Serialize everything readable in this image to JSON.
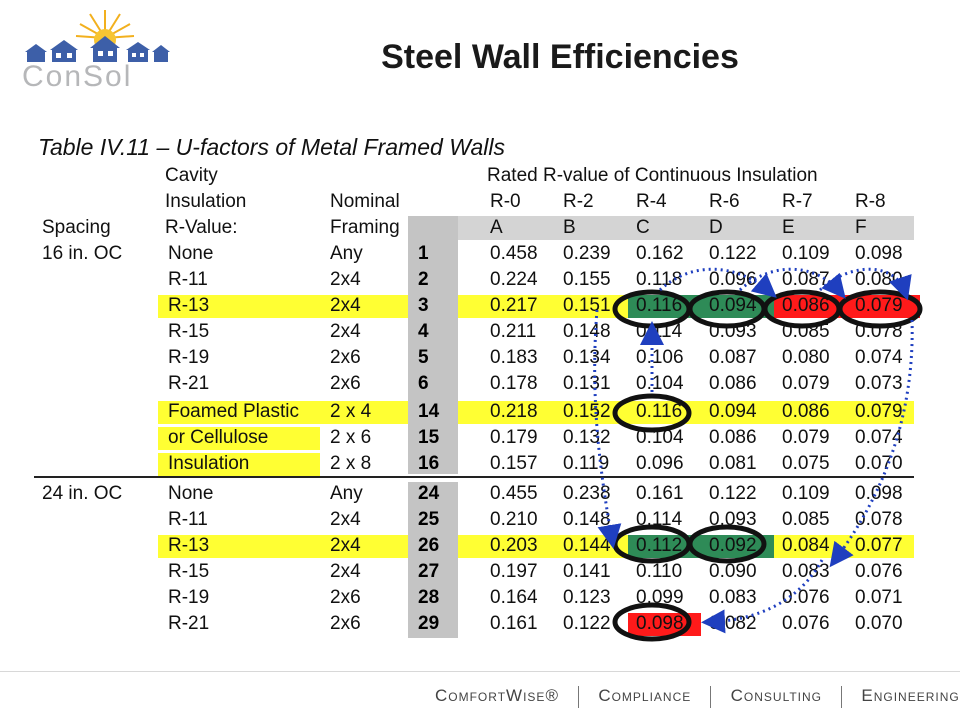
{
  "slide": {
    "title": "Steel Wall Efficiencies",
    "logo_text": "ConSol"
  },
  "table": {
    "caption": "Table IV.11 – U-factors of Metal Framed Walls",
    "header": {
      "cavity": "Cavity",
      "insulation": "Insulation",
      "spacing": "Spacing",
      "r_value": "R-Value:",
      "nominal": "Nominal",
      "framing": "Framing",
      "rated": "Rated R-value of Continuous Insulation",
      "r_cols": [
        "R-0",
        "R-2",
        "R-4",
        "R-6",
        "R-7",
        "R-8"
      ],
      "letters": [
        "A",
        "B",
        "C",
        "D",
        "E",
        "F"
      ]
    },
    "rows": [
      {
        "spacing": "16 in. OC",
        "cavity": "None",
        "framing": "Any",
        "num": "1",
        "values": [
          "0.458",
          "0.239",
          "0.162",
          "0.122",
          "0.109",
          "0.098"
        ]
      },
      {
        "spacing": "",
        "cavity": "R-11",
        "framing": "2x4",
        "num": "2",
        "values": [
          "0.224",
          "0.155",
          "0.118",
          "0.096",
          "0.087",
          "0.080"
        ]
      },
      {
        "spacing": "",
        "cavity": "R-13",
        "framing": "2x4",
        "num": "3",
        "values": [
          "0.217",
          "0.151",
          "0.116",
          "0.094",
          "0.086",
          "0.079"
        ]
      },
      {
        "spacing": "",
        "cavity": "R-15",
        "framing": "2x4",
        "num": "4",
        "values": [
          "0.211",
          "0.148",
          "0.114",
          "0.093",
          "0.085",
          "0.078"
        ]
      },
      {
        "spacing": "",
        "cavity": "R-19",
        "framing": "2x6",
        "num": "5",
        "values": [
          "0.183",
          "0.134",
          "0.106",
          "0.087",
          "0.080",
          "0.074"
        ]
      },
      {
        "spacing": "",
        "cavity": "R-21",
        "framing": "2x6",
        "num": "6",
        "values": [
          "0.178",
          "0.131",
          "0.104",
          "0.086",
          "0.079",
          "0.073"
        ]
      },
      {
        "spacing": "",
        "cavity": "Foamed Plastic",
        "framing": "2 x 4",
        "num": "14",
        "values": [
          "0.218",
          "0.152",
          "0.116",
          "0.094",
          "0.086",
          "0.079"
        ]
      },
      {
        "spacing": "",
        "cavity": "or Cellulose",
        "framing": "2 x 6",
        "num": "15",
        "values": [
          "0.179",
          "0.132",
          "0.104",
          "0.086",
          "0.079",
          "0.074"
        ]
      },
      {
        "spacing": "",
        "cavity": "Insulation",
        "framing": "2 x 8",
        "num": "16",
        "values": [
          "0.157",
          "0.119",
          "0.096",
          "0.081",
          "0.075",
          "0.070"
        ]
      },
      {
        "spacing": "24 in. OC",
        "cavity": "None",
        "framing": "Any",
        "num": "24",
        "values": [
          "0.455",
          "0.238",
          "0.161",
          "0.122",
          "0.109",
          "0.098"
        ]
      },
      {
        "spacing": "",
        "cavity": "R-11",
        "framing": "2x4",
        "num": "25",
        "values": [
          "0.210",
          "0.148",
          "0.114",
          "0.093",
          "0.085",
          "0.078"
        ]
      },
      {
        "spacing": "",
        "cavity": "R-13",
        "framing": "2x4",
        "num": "26",
        "values": [
          "0.203",
          "0.144",
          "0.112",
          "0.092",
          "0.084",
          "0.077"
        ]
      },
      {
        "spacing": "",
        "cavity": "R-15",
        "framing": "2x4",
        "num": "27",
        "values": [
          "0.197",
          "0.141",
          "0.110",
          "0.090",
          "0.083",
          "0.076"
        ]
      },
      {
        "spacing": "",
        "cavity": "R-19",
        "framing": "2x6",
        "num": "28",
        "values": [
          "0.164",
          "0.123",
          "0.099",
          "0.083",
          "0.076",
          "0.071"
        ]
      },
      {
        "spacing": "",
        "cavity": "R-21",
        "framing": "2x6",
        "num": "29",
        "values": [
          "0.161",
          "0.122",
          "0.098",
          "0.082",
          "0.076",
          "0.070"
        ]
      }
    ]
  },
  "colors": {
    "highlight_yellow": "#ffff33",
    "green_cell": "#2e8b57",
    "red_cell": "#ff1a1a",
    "arrow_blue": "#1f3fbf",
    "num_col_gray": "#c4c4c4"
  },
  "footer": {
    "items": [
      "ComfortWise®",
      "Compliance",
      "Consulting",
      "Engineering"
    ]
  }
}
